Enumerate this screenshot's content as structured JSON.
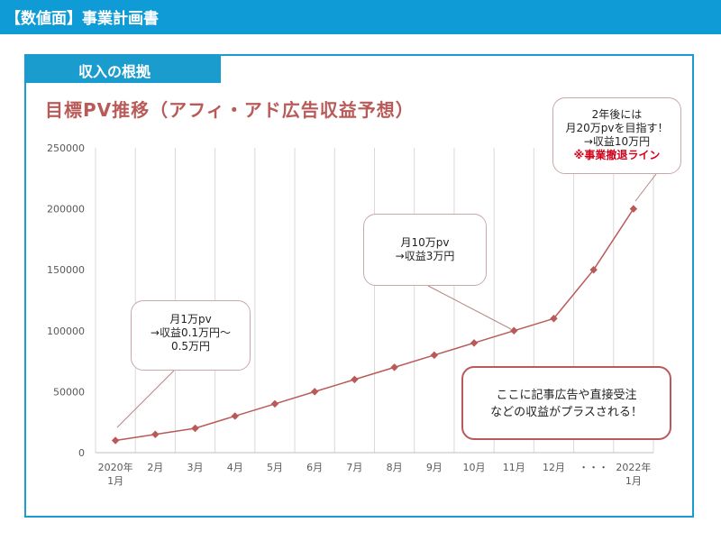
{
  "header": {
    "title": "【数値面】事業計画書"
  },
  "section": {
    "label": "収入の根拠"
  },
  "chart_data": {
    "type": "line",
    "title": "目標PV推移（アフィ・アド広告収益予想）",
    "categories": [
      "2020年\n1月",
      "2月",
      "3月",
      "4月",
      "5月",
      "6月",
      "7月",
      "8月",
      "9月",
      "10月",
      "11月",
      "12月",
      "・・・",
      "2022年\n1月"
    ],
    "series": [
      {
        "values": [
          10000,
          15000,
          20000,
          30000,
          40000,
          50000,
          60000,
          70000,
          80000,
          90000,
          100000,
          110000,
          150000,
          200000
        ]
      }
    ],
    "yticks": [
      "250000",
      "200000",
      "150000",
      "100000",
      "50000",
      "0"
    ],
    "ylim": [
      0,
      250000
    ],
    "grid": "vertical",
    "line_color": "#b95a58"
  },
  "callouts": {
    "c1": {
      "line1": "月1万pv",
      "line2": "→収益0.1万円～",
      "line3": "0.5万円"
    },
    "c2": {
      "line1": "月10万pv",
      "line2": "→収益3万円"
    },
    "c3": {
      "line1": "2年後には",
      "line2": "月20万pvを目指す！",
      "line3": "→収益10万円",
      "line4": "※事業撤退ライン"
    }
  },
  "note": {
    "line1": "ここに記事広告や直接受注",
    "line2": "などの収益がプラスされる！"
  }
}
